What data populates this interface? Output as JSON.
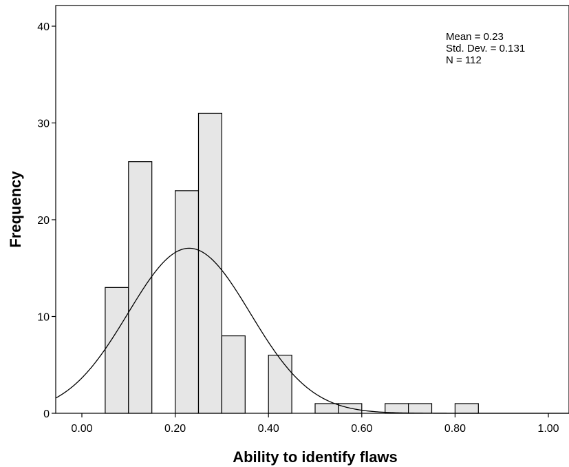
{
  "chart_data": {
    "type": "bar",
    "subtype": "histogram",
    "title": "",
    "xlabel": "Ability to identify flaws",
    "ylabel": "Frequency",
    "xlim": [
      -0.05,
      1.05
    ],
    "ylim": [
      0,
      42
    ],
    "bin_width": 0.05,
    "x_ticks": [
      0.0,
      0.2,
      0.4,
      0.6,
      0.8,
      1.0
    ],
    "x_tick_labels": [
      "0.00",
      "0.20",
      "0.40",
      "0.60",
      "0.80",
      "1.00"
    ],
    "y_ticks": [
      0,
      10,
      20,
      30,
      40
    ],
    "y_tick_labels": [
      "0",
      "10",
      "20",
      "30",
      "40"
    ],
    "bins": [
      {
        "x0": 0.05,
        "x1": 0.1,
        "count": 13
      },
      {
        "x0": 0.1,
        "x1": 0.15,
        "count": 26
      },
      {
        "x0": 0.2,
        "x1": 0.25,
        "count": 23
      },
      {
        "x0": 0.25,
        "x1": 0.3,
        "count": 31
      },
      {
        "x0": 0.3,
        "x1": 0.35,
        "count": 8
      },
      {
        "x0": 0.4,
        "x1": 0.45,
        "count": 6
      },
      {
        "x0": 0.5,
        "x1": 0.55,
        "count": 1
      },
      {
        "x0": 0.55,
        "x1": 0.6,
        "count": 1
      },
      {
        "x0": 0.65,
        "x1": 0.7,
        "count": 1
      },
      {
        "x0": 0.7,
        "x1": 0.75,
        "count": 1
      },
      {
        "x0": 0.8,
        "x1": 0.85,
        "count": 1
      }
    ],
    "normal_curve": {
      "mean": 0.23,
      "sd": 0.131,
      "n": 112
    },
    "stats_text": [
      "Mean = 0.23",
      "Std. Dev. = 0.131",
      "N = 112"
    ],
    "grid": false,
    "colors": {
      "bar_fill": "#e6e6e6",
      "bar_stroke": "#000000",
      "curve": "#000000"
    }
  }
}
